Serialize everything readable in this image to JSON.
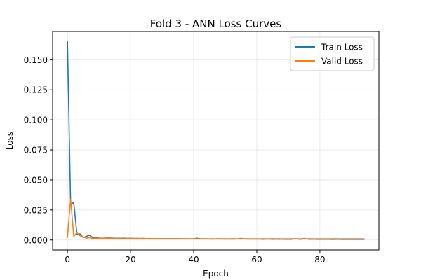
{
  "chart_data": {
    "type": "line",
    "title": "Fold 3 - ANN Loss Curves",
    "xlabel": "Epoch",
    "ylabel": "Loss",
    "xlim": [
      -4.7,
      98.7
    ],
    "ylim": [
      -0.0083,
      0.1735
    ],
    "xticks": [
      0,
      20,
      40,
      60,
      80
    ],
    "xtick_labels": [
      "0",
      "20",
      "40",
      "60",
      "80"
    ],
    "yticks": [
      0.0,
      0.025,
      0.05,
      0.075,
      0.1,
      0.125,
      0.15
    ],
    "ytick_labels": [
      "0.000",
      "0.025",
      "0.050",
      "0.075",
      "0.100",
      "0.125",
      "0.150"
    ],
    "grid": true,
    "legend_position": "top-right",
    "series": [
      {
        "name": "Train Loss",
        "color": "#1f77b4",
        "x": [
          0,
          1,
          2,
          3,
          4,
          5,
          6,
          7,
          8,
          9,
          10,
          11,
          12,
          13,
          14,
          15,
          16,
          17,
          18,
          19,
          20,
          21,
          22,
          23,
          24,
          25,
          26,
          27,
          28,
          29,
          30,
          31,
          32,
          33,
          34,
          35,
          36,
          37,
          38,
          39,
          40,
          41,
          42,
          43,
          44,
          45,
          46,
          47,
          48,
          49,
          50,
          51,
          52,
          53,
          54,
          55,
          56,
          57,
          58,
          59,
          60,
          61,
          62,
          63,
          64,
          65,
          66,
          67,
          68,
          69,
          70,
          71,
          72,
          73,
          74,
          75,
          76,
          77,
          78,
          79,
          80,
          81,
          82,
          83,
          84,
          85,
          86,
          87,
          88,
          89,
          90,
          91,
          92,
          93,
          94
        ],
        "y": [
          0.165,
          0.03,
          0.031,
          0.005,
          0.005,
          0.002,
          0.003,
          0.004,
          0.002,
          0.0018,
          0.0016,
          0.0015,
          0.0016,
          0.0017,
          0.0016,
          0.0015,
          0.0014,
          0.0014,
          0.0015,
          0.0013,
          0.0014,
          0.0012,
          0.0013,
          0.0012,
          0.0013,
          0.0011,
          0.0012,
          0.0011,
          0.0011,
          0.0011,
          0.001,
          0.0011,
          0.001,
          0.001,
          0.0011,
          0.001,
          0.001,
          0.0009,
          0.001,
          0.0009,
          0.001,
          0.0014,
          0.0011,
          0.0009,
          0.0009,
          0.0009,
          0.0008,
          0.0009,
          0.0009,
          0.0008,
          0.0009,
          0.0008,
          0.0008,
          0.0008,
          0.0009,
          0.0013,
          0.0009,
          0.0008,
          0.0008,
          0.0008,
          0.0008,
          0.0008,
          0.0007,
          0.0008,
          0.0008,
          0.0007,
          0.0008,
          0.0007,
          0.0008,
          0.0007,
          0.0007,
          0.0007,
          0.0011,
          0.0008,
          0.0007,
          0.0012,
          0.0008,
          0.0007,
          0.0008,
          0.0007,
          0.0007,
          0.0007,
          0.0007,
          0.0007,
          0.0006,
          0.0007,
          0.0007,
          0.0006,
          0.0007,
          0.0006,
          0.0007,
          0.0006,
          0.0006,
          0.0006,
          0.0006
        ]
      },
      {
        "name": "Valid Loss",
        "color": "#ff7f0e",
        "x": [
          0,
          1,
          2,
          3,
          4,
          5,
          6,
          7,
          8,
          9,
          10,
          11,
          12,
          13,
          14,
          15,
          16,
          17,
          18,
          19,
          20,
          21,
          22,
          23,
          24,
          25,
          26,
          27,
          28,
          29,
          30,
          31,
          32,
          33,
          34,
          35,
          36,
          37,
          38,
          39,
          40,
          41,
          42,
          43,
          44,
          45,
          46,
          47,
          48,
          49,
          50,
          51,
          52,
          53,
          54,
          55,
          56,
          57,
          58,
          59,
          60,
          61,
          62,
          63,
          64,
          65,
          66,
          67,
          68,
          69,
          70,
          71,
          72,
          73,
          74,
          75,
          76,
          77,
          78,
          79,
          80,
          81,
          82,
          83,
          84,
          85,
          86,
          87,
          88,
          89,
          90,
          91,
          92,
          93,
          94
        ],
        "y": [
          0.002,
          0.034,
          0.003,
          0.006,
          0.0035,
          0.0025,
          0.0015,
          0.002,
          0.0012,
          0.0015,
          0.0013,
          0.0015,
          0.0014,
          0.0015,
          0.0013,
          0.0014,
          0.0012,
          0.0013,
          0.0012,
          0.0013,
          0.0012,
          0.0013,
          0.0011,
          0.0012,
          0.0011,
          0.0012,
          0.0011,
          0.0011,
          0.0012,
          0.0011,
          0.0011,
          0.001,
          0.0011,
          0.0011,
          0.001,
          0.0011,
          0.001,
          0.0011,
          0.001,
          0.001,
          0.0011,
          0.001,
          0.001,
          0.0011,
          0.001,
          0.001,
          0.001,
          0.001,
          0.0011,
          0.001,
          0.001,
          0.001,
          0.0011,
          0.001,
          0.001,
          0.001,
          0.001,
          0.0011,
          0.001,
          0.001,
          0.001,
          0.001,
          0.001,
          0.001,
          0.001,
          0.0011,
          0.001,
          0.001,
          0.001,
          0.001,
          0.001,
          0.001,
          0.001,
          0.001,
          0.001,
          0.001,
          0.001,
          0.0011,
          0.001,
          0.001,
          0.001,
          0.001,
          0.001,
          0.001,
          0.001,
          0.0011,
          0.001,
          0.001,
          0.001,
          0.001,
          0.001,
          0.001,
          0.001,
          0.001,
          0.001
        ]
      }
    ]
  }
}
